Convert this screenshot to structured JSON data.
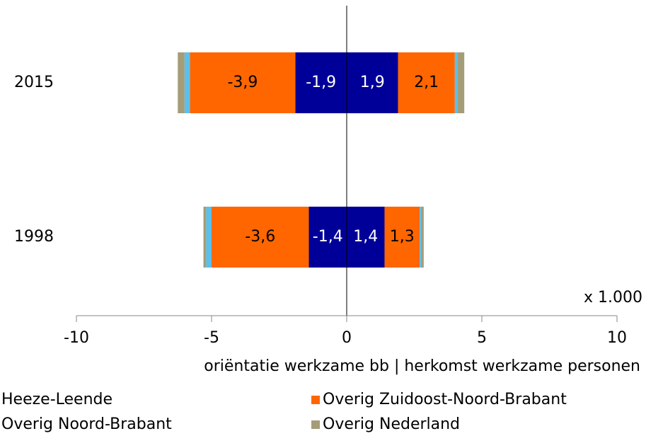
{
  "chart_data": {
    "type": "diverging_bar",
    "categories": [
      "2015",
      "1998"
    ],
    "series": [
      {
        "name": "Heeze-Leende",
        "color": "#000099",
        "label_color": "#ffffff",
        "values": [
          [
            -1.9,
            1.9
          ],
          [
            -1.4,
            1.4
          ]
        ],
        "value_labels": [
          [
            "-1,9",
            "1,9"
          ],
          [
            "-1,4",
            "1,4"
          ]
        ]
      },
      {
        "name": "Overig Zuidoost-Noord-Brabant",
        "color": "#ff6600",
        "label_color": "#000000",
        "values": [
          [
            -3.9,
            2.1
          ],
          [
            -3.6,
            1.3
          ]
        ],
        "value_labels": [
          [
            "-3,9",
            "2,1"
          ],
          [
            "-3,6",
            "1,3"
          ]
        ]
      },
      {
        "name": "Overig Noord-Brabant",
        "color": "#5bc0eb",
        "values": [
          [
            -0.2,
            0.1
          ],
          [
            -0.2,
            0.05
          ]
        ]
      },
      {
        "name": "Overig Nederland",
        "color": "#a59d78",
        "values": [
          [
            -0.25,
            0.25
          ],
          [
            -0.1,
            0.1
          ]
        ]
      }
    ],
    "xlim": [
      -10,
      10
    ],
    "xticks": [
      -10,
      -5,
      0,
      5,
      10
    ],
    "xlabel": "oriëntatie werkzame bb | herkomst werkzame personen",
    "annotation": "x 1.000"
  }
}
